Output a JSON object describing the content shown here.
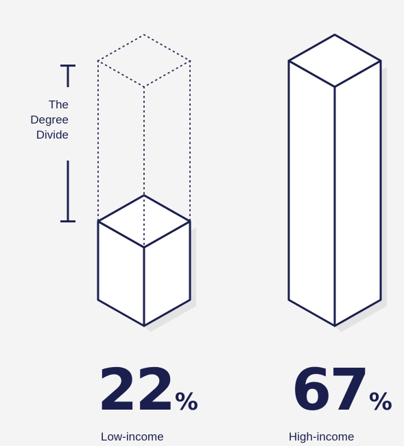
{
  "chart_data": {
    "type": "bar",
    "style": "isometric-3d-columns",
    "categories": [
      "Low-income",
      "High-income"
    ],
    "values": [
      22,
      67
    ],
    "unit": "%",
    "annotation": {
      "lines": [
        "The",
        "Degree",
        "Divide"
      ],
      "spans": "gap between Low-income and High-income"
    },
    "colors": {
      "outline": "#1b1f4e",
      "face": "#ffffff",
      "shadow": "#e3e3e3",
      "dotted": "#3a3060",
      "background": "#f4f4f4"
    }
  }
}
